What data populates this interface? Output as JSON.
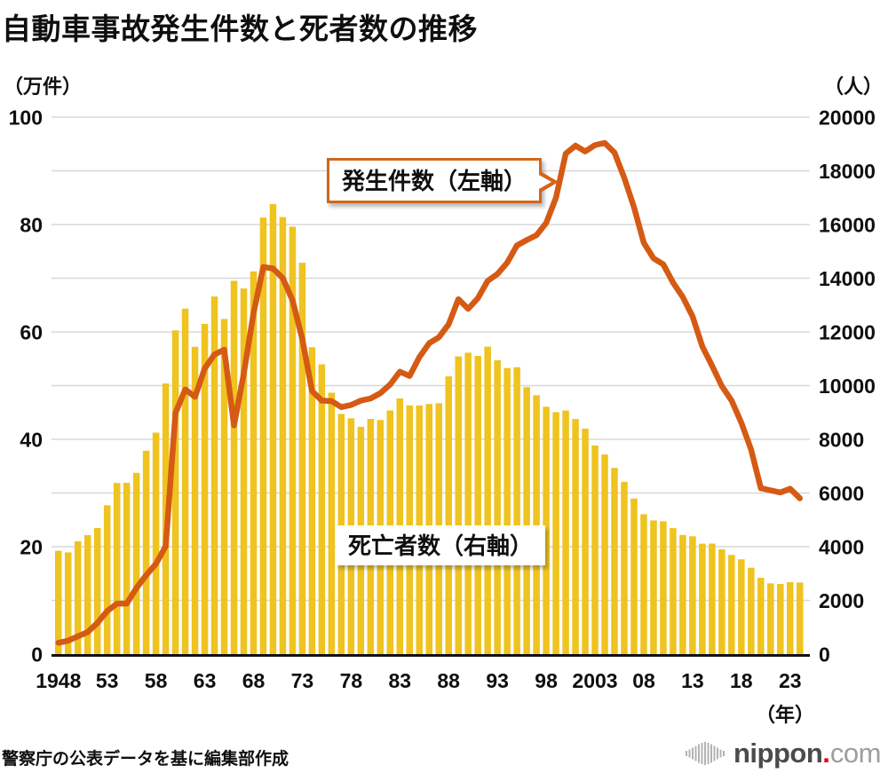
{
  "title": "自動車事故発生件数と死者数の推移",
  "left_axis": {
    "unit": "（万件）",
    "ticks": [
      0,
      20,
      40,
      60,
      80,
      100
    ]
  },
  "right_axis": {
    "unit": "（人）",
    "ticks": [
      0,
      2000,
      4000,
      6000,
      8000,
      10000,
      12000,
      14000,
      16000,
      18000,
      20000
    ]
  },
  "x_axis": {
    "unit": "（年）",
    "tick_labels": [
      "1948",
      "53",
      "58",
      "63",
      "68",
      "73",
      "78",
      "83",
      "88",
      "93",
      "98",
      "2003",
      "08",
      "13",
      "18",
      "23"
    ],
    "tick_step_years": 5
  },
  "callouts": {
    "line": "発生件数（左軸）",
    "bars": "死亡者数（右軸）"
  },
  "source": "警察庁の公表データを基に編集部作成",
  "logo": {
    "name": "nippon",
    "dot": ".",
    "tld": "com"
  },
  "colors": {
    "bar": "#EFC320",
    "line": "#D55A14",
    "grid": "#D8D8D8",
    "axis_line": "#111111",
    "callout_border": "#D2661A",
    "logo_dot": "#e60012"
  },
  "chart_data": {
    "type": "bar+line combo, dual axis",
    "title": "自動車事故発生件数と死者数の推移",
    "x_label": "（年）",
    "grid": "horizontal gridlines every 10万件 / 2000人, no vertical grid",
    "legend": "inline callout labels",
    "left_ylim": [
      0,
      100
    ],
    "right_ylim": [
      0,
      20000
    ],
    "years": [
      1948,
      1949,
      1950,
      1951,
      1952,
      1953,
      1954,
      1955,
      1956,
      1957,
      1958,
      1959,
      1960,
      1961,
      1962,
      1963,
      1964,
      1965,
      1966,
      1967,
      1968,
      1969,
      1970,
      1971,
      1972,
      1973,
      1974,
      1975,
      1976,
      1977,
      1978,
      1979,
      1980,
      1981,
      1982,
      1983,
      1984,
      1985,
      1986,
      1987,
      1988,
      1989,
      1990,
      1991,
      1992,
      1993,
      1994,
      1995,
      1996,
      1997,
      1998,
      1999,
      2000,
      2001,
      2002,
      2003,
      2004,
      2005,
      2006,
      2007,
      2008,
      2009,
      2010,
      2011,
      2012,
      2013,
      2014,
      2015,
      2016,
      2017,
      2018,
      2019,
      2020,
      2021,
      2022,
      2023,
      2024
    ],
    "series": [
      {
        "name": "発生件数（左軸）",
        "type": "line",
        "axis": "left",
        "unit": "万件",
        "values": [
          2.1,
          2.5,
          3.3,
          4.1,
          5.8,
          8.0,
          9.4,
          9.4,
          12.3,
          14.7,
          16.8,
          20.1,
          44.9,
          49.3,
          47.9,
          53.2,
          55.8,
          56.7,
          42.6,
          52.2,
          63.5,
          72.1,
          71.8,
          70.0,
          65.9,
          58.7,
          49.0,
          47.2,
          47.1,
          46.0,
          46.4,
          47.2,
          47.6,
          48.6,
          50.2,
          52.6,
          51.8,
          55.3,
          57.9,
          59.0,
          61.4,
          66.1,
          64.3,
          66.3,
          69.5,
          70.8,
          72.9,
          76.1,
          77.1,
          78.0,
          80.3,
          85.0,
          93.2,
          94.7,
          93.6,
          94.8,
          95.2,
          93.4,
          88.7,
          83.2,
          76.6,
          73.7,
          72.6,
          69.2,
          66.5,
          62.9,
          57.3,
          53.7,
          49.9,
          47.2,
          43.1,
          38.1,
          30.9,
          30.5,
          30.1,
          30.8,
          29.0
        ]
      },
      {
        "name": "死亡者数（右軸）",
        "type": "bar",
        "axis": "right",
        "unit": "人",
        "values": [
          3848,
          3790,
          4202,
          4429,
          4696,
          5544,
          6374,
          6379,
          6751,
          7575,
          8248,
          10079,
          12055,
          12865,
          11445,
          12301,
          13318,
          12484,
          13904,
          13618,
          14256,
          16257,
          16765,
          16278,
          15918,
          14574,
          11432,
          10792,
          9734,
          8945,
          8783,
          8466,
          8760,
          8719,
          9073,
          9520,
          9262,
          9261,
          9317,
          9347,
          10344,
          11086,
          11227,
          11109,
          11452,
          10945,
          10653,
          10684,
          9943,
          9642,
          9214,
          9012,
          9073,
          8757,
          8396,
          7768,
          7436,
          6937,
          6415,
          5796,
          5209,
          4979,
          4948,
          4691,
          4438,
          4388,
          4113,
          4117,
          3904,
          3694,
          3532,
          3215,
          2839,
          2636,
          2610,
          2678,
          2663
        ]
      }
    ]
  }
}
